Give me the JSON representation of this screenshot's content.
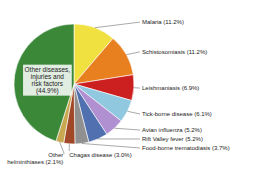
{
  "chart_data": {
    "type": "pie",
    "categories": [
      "Malaria (11.2%)",
      "Schistosomiasis (11.2%)",
      "Leishmaniasis (6.9%)",
      "Tick-borne disease (6.1%)",
      "Avian influenza (5.2%)",
      "Rift Valley fever (5.2%)",
      "Food-borne trematodiasis (3.7%)",
      "Chagas disease (3.0%)",
      "Other\nhelminthiases (2.1%)",
      "Other diseases,\ninjuries and\nrisk factors\n(44.9%)"
    ],
    "values": [
      11.2,
      11.2,
      6.9,
      6.1,
      5.2,
      5.2,
      3.7,
      3.0,
      2.1,
      44.9
    ],
    "colors": [
      "#f0e040",
      "#e88020",
      "#cc2020",
      "#90c8e0",
      "#b090d0",
      "#5070b0",
      "#909090",
      "#a04828",
      "#c8a850",
      "#3a8838"
    ]
  }
}
